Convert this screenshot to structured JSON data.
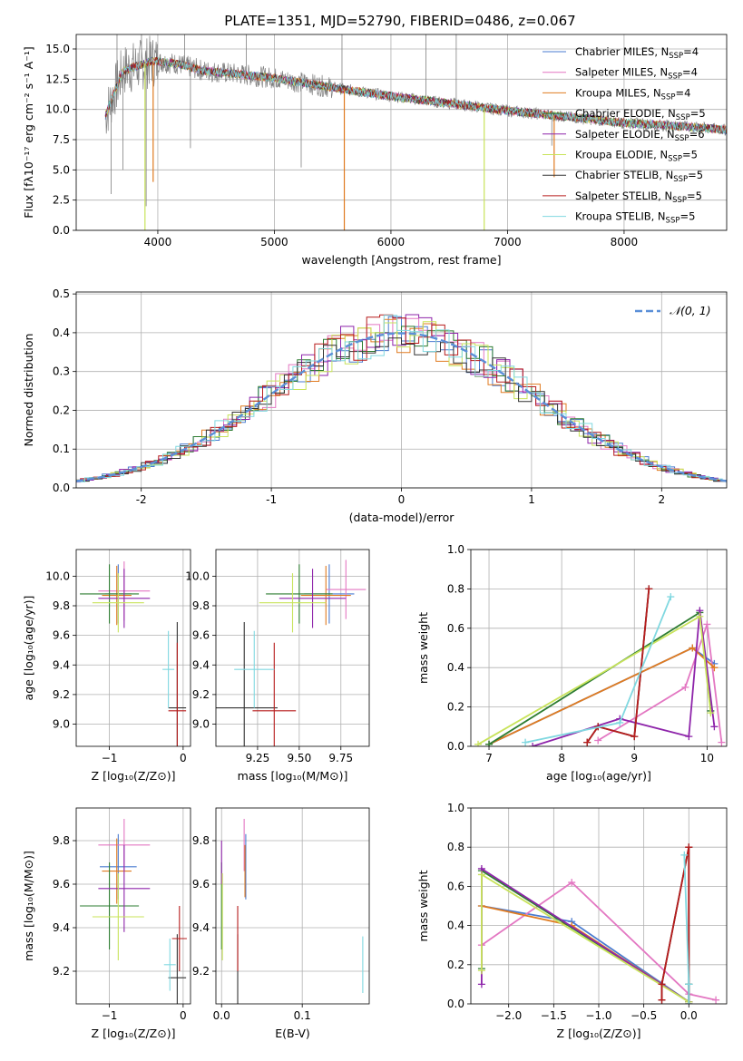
{
  "figure_title": "PLATE=1351, MJD=52790, FIBERID=0486, z=0.067",
  "colors": {
    "chabrier_miles": "#4a7bd0",
    "salpeter_miles": "#e377c2",
    "kroupa_miles": "#e07b20",
    "chabrier_elodie": "#2e7d32",
    "salpeter_elodie": "#8e24aa",
    "kroupa_elodie": "#c8e35a",
    "chabrier_stelib": "#333333",
    "salpeter_stelib": "#b71c1c",
    "kroupa_stelib": "#80d8e0",
    "data": "#808080",
    "gaussian": "#5b8fd8"
  },
  "legend": [
    {
      "key": "chabrier_miles",
      "prefix": "Chabrier MILES, N",
      "sub": "SSP",
      "suffix": "=4"
    },
    {
      "key": "salpeter_miles",
      "prefix": "Salpeter MILES, N",
      "sub": "SSP",
      "suffix": "=4"
    },
    {
      "key": "kroupa_miles",
      "prefix": "Kroupa MILES, N",
      "sub": "SSP",
      "suffix": "=4"
    },
    {
      "key": "chabrier_elodie",
      "prefix": "Chabrier ELODIE, N",
      "sub": "SSP",
      "suffix": "=5"
    },
    {
      "key": "salpeter_elodie",
      "prefix": "Salpeter ELODIE, N",
      "sub": "SSP",
      "suffix": "=6"
    },
    {
      "key": "kroupa_elodie",
      "prefix": "Kroupa ELODIE, N",
      "sub": "SSP",
      "suffix": "=5"
    },
    {
      "key": "chabrier_stelib",
      "prefix": "Chabrier STELIB, N",
      "sub": "SSP",
      "suffix": "=5"
    },
    {
      "key": "salpeter_stelib",
      "prefix": "Salpeter STELIB, N",
      "sub": "SSP",
      "suffix": "=5"
    },
    {
      "key": "kroupa_stelib",
      "prefix": "Kroupa STELIB, N",
      "sub": "SSP",
      "suffix": "=5"
    }
  ],
  "chart_data": [
    {
      "id": "spectrum",
      "type": "line",
      "xlabel": "wavelength [Angstrom, rest frame]",
      "ylabel": "Flux [fλ10⁻¹⁷ erg cm⁻² s⁻¹ A⁻¹]",
      "xlim": [
        3300,
        8880
      ],
      "ylim": [
        0,
        16.2
      ],
      "xticks": [
        4000,
        5000,
        6000,
        7000,
        8000
      ],
      "yticks": [
        0.0,
        2.5,
        5.0,
        7.5,
        10.0,
        12.5,
        15.0
      ],
      "continuum": {
        "x": [
          3550,
          3700,
          3950,
          4150,
          4400,
          5000,
          5500,
          6000,
          6500,
          7000,
          7500,
          8000,
          8500,
          8880
        ],
        "y": [
          9.5,
          13.2,
          14.0,
          13.8,
          13.2,
          12.6,
          11.8,
          11.1,
          10.5,
          9.9,
          9.4,
          8.9,
          8.6,
          8.3
        ]
      },
      "data_spikes": [
        {
          "x": 3600,
          "y": 3.0
        },
        {
          "x": 3650,
          "y": 16.2
        },
        {
          "x": 3700,
          "y": 5.0
        },
        {
          "x": 3860,
          "y": 16.2
        },
        {
          "x": 3900,
          "y": 2.0
        },
        {
          "x": 4230,
          "y": 16.2
        },
        {
          "x": 4280,
          "y": 6.8
        },
        {
          "x": 4760,
          "y": 16.2
        },
        {
          "x": 5230,
          "y": 5.2
        },
        {
          "x": 5580,
          "y": 16.2
        },
        {
          "x": 6300,
          "y": 16.2
        },
        {
          "x": 6560,
          "y": 16.2
        },
        {
          "x": 7380,
          "y": 7.0
        }
      ],
      "model_dips": [
        {
          "x": 3890,
          "y": 0.0,
          "key": "kroupa_elodie"
        },
        {
          "x": 3960,
          "y": 4.0,
          "key": "kroupa_miles"
        },
        {
          "x": 5600,
          "y": 0.0,
          "key": "kroupa_miles"
        },
        {
          "x": 6800,
          "y": 0.0,
          "key": "kroupa_elodie"
        },
        {
          "x": 7400,
          "y": 4.4,
          "key": "kroupa_miles"
        }
      ]
    },
    {
      "id": "residuals",
      "type": "histogram",
      "xlabel": "(data-model)/error",
      "ylabel": "Normed distribution",
      "xlim": [
        -2.5,
        2.5
      ],
      "ylim": [
        0,
        0.505
      ],
      "xticks": [
        -2,
        -1,
        0,
        1,
        2
      ],
      "yticks": [
        0.0,
        0.1,
        0.2,
        0.3,
        0.4,
        0.5
      ],
      "legend_label": "𝒩(0, 1)"
    },
    {
      "id": "age_vs_Z",
      "type": "errorbar",
      "xlabel": "Z [log₁₀(Z/Z⊙)]",
      "ylabel": "age  [log₁₀(age/yr)]",
      "xlim": [
        -1.45,
        0.1
      ],
      "ylim": [
        8.85,
        10.18
      ],
      "xticks": [
        -1,
        0
      ],
      "xticklabels": [
        "−1",
        "0"
      ],
      "yticks": [
        9.0,
        9.2,
        9.4,
        9.6,
        9.8,
        10.0
      ],
      "points": [
        {
          "key": "chabrier_miles",
          "x": -0.88,
          "xerr": 0.18,
          "y": 9.88,
          "yerr": 0.2
        },
        {
          "key": "salpeter_miles",
          "x": -0.8,
          "xerr": 0.35,
          "y": 9.9,
          "yerr": 0.2
        },
        {
          "key": "kroupa_miles",
          "x": -0.9,
          "xerr": 0.2,
          "y": 9.87,
          "yerr": 0.2
        },
        {
          "key": "chabrier_elodie",
          "x": -1.0,
          "xerr": 0.4,
          "y": 9.88,
          "yerr": 0.2
        },
        {
          "key": "salpeter_elodie",
          "x": -0.8,
          "xerr": 0.35,
          "y": 9.85,
          "yerr": 0.2
        },
        {
          "key": "kroupa_elodie",
          "x": -0.88,
          "xerr": 0.35,
          "y": 9.82,
          "yerr": 0.2
        },
        {
          "key": "chabrier_stelib",
          "x": -0.08,
          "xerr": 0.12,
          "y": 9.11,
          "yerr": 0.58
        },
        {
          "key": "salpeter_stelib",
          "x": -0.08,
          "xerr": 0.12,
          "y": 9.09,
          "yerr": 0.46
        },
        {
          "key": "kroupa_stelib",
          "x": -0.2,
          "xerr": 0.08,
          "y": 9.37,
          "yerr": 0.26
        }
      ]
    },
    {
      "id": "age_vs_mass",
      "type": "errorbar",
      "xlabel": "mass [log₁₀(M/M⊙)]",
      "ylabel": "",
      "xlim": [
        9.0,
        9.92
      ],
      "ylim": [
        8.85,
        10.18
      ],
      "xticks": [
        9.25,
        9.5,
        9.75
      ],
      "xticklabels": [
        "9.25",
        "9.50",
        "9.75"
      ],
      "yticks": [
        9.0,
        9.2,
        9.4,
        9.6,
        9.8,
        10.0
      ],
      "points": [
        {
          "key": "chabrier_miles",
          "x": 9.68,
          "xerr": 0.15,
          "y": 9.88,
          "yerr": 0.2
        },
        {
          "key": "salpeter_miles",
          "x": 9.78,
          "xerr": 0.12,
          "y": 9.91,
          "yerr": 0.2
        },
        {
          "key": "kroupa_miles",
          "x": 9.66,
          "xerr": 0.15,
          "y": 9.87,
          "yerr": 0.2
        },
        {
          "key": "chabrier_elodie",
          "x": 9.5,
          "xerr": 0.2,
          "y": 9.88,
          "yerr": 0.2
        },
        {
          "key": "salpeter_elodie",
          "x": 9.58,
          "xerr": 0.2,
          "y": 9.85,
          "yerr": 0.2
        },
        {
          "key": "kroupa_elodie",
          "x": 9.46,
          "xerr": 0.2,
          "y": 9.82,
          "yerr": 0.2
        },
        {
          "key": "chabrier_stelib",
          "x": 9.17,
          "xerr": 0.2,
          "y": 9.11,
          "yerr": 0.58
        },
        {
          "key": "salpeter_stelib",
          "x": 9.35,
          "xerr": 0.13,
          "y": 9.09,
          "yerr": 0.46
        },
        {
          "key": "kroupa_stelib",
          "x": 9.23,
          "xerr": 0.12,
          "y": 9.37,
          "yerr": 0.26
        }
      ]
    },
    {
      "id": "weight_vs_age",
      "type": "line",
      "xlabel": "age  [log₁₀(age/yr)]",
      "ylabel": "mass weight",
      "xlim": [
        6.75,
        10.27
      ],
      "ylim": [
        0,
        1.0
      ],
      "xticks": [
        7,
        8,
        9,
        10
      ],
      "yticks": [
        0.0,
        0.2,
        0.4,
        0.6,
        0.8,
        1.0
      ],
      "series": [
        {
          "key": "chabrier_miles",
          "x": [
            7.0,
            9.8,
            10.1
          ],
          "y": [
            0.01,
            0.5,
            0.42
          ]
        },
        {
          "key": "salpeter_miles",
          "x": [
            8.5,
            9.7,
            10.0,
            10.2
          ],
          "y": [
            0.03,
            0.3,
            0.62,
            0.02
          ]
        },
        {
          "key": "kroupa_miles",
          "x": [
            7.0,
            9.8,
            10.1
          ],
          "y": [
            0.01,
            0.5,
            0.4
          ]
        },
        {
          "key": "chabrier_elodie",
          "x": [
            7.0,
            9.9,
            10.05
          ],
          "y": [
            0.01,
            0.68,
            0.18
          ]
        },
        {
          "key": "salpeter_elodie",
          "x": [
            7.6,
            8.8,
            9.75,
            9.9,
            10.1
          ],
          "y": [
            0.0,
            0.14,
            0.05,
            0.69,
            0.1
          ]
        },
        {
          "key": "kroupa_elodie",
          "x": [
            6.85,
            9.9,
            10.05
          ],
          "y": [
            0.01,
            0.66,
            0.17
          ]
        },
        {
          "key": "chabrier_stelib",
          "x": [
            8.35,
            8.5,
            9.0,
            9.2
          ],
          "y": [
            0.02,
            0.1,
            0.05,
            0.8
          ]
        },
        {
          "key": "salpeter_stelib",
          "x": [
            8.35,
            8.5,
            9.0,
            9.2
          ],
          "y": [
            0.02,
            0.1,
            0.05,
            0.8
          ]
        },
        {
          "key": "kroupa_stelib",
          "x": [
            7.5,
            8.8,
            9.5
          ],
          "y": [
            0.02,
            0.12,
            0.76
          ]
        }
      ]
    },
    {
      "id": "mass_vs_Z",
      "type": "errorbar",
      "xlabel": "Z [log₁₀(Z/Z⊙)]",
      "ylabel": "mass [log₁₀(M/M⊙)]",
      "xlim": [
        -1.45,
        0.1
      ],
      "ylim": [
        9.05,
        9.95
      ],
      "xticks": [
        -1,
        0
      ],
      "xticklabels": [
        "−1",
        "0"
      ],
      "yticks": [
        9.2,
        9.4,
        9.6,
        9.8
      ],
      "points": [
        {
          "key": "chabrier_miles",
          "x": -0.88,
          "xerr": 0.25,
          "y": 9.68,
          "yerr": 0.15
        },
        {
          "key": "salpeter_miles",
          "x": -0.8,
          "xerr": 0.35,
          "y": 9.78,
          "yerr": 0.12
        },
        {
          "key": "kroupa_miles",
          "x": -0.9,
          "xerr": 0.2,
          "y": 9.66,
          "yerr": 0.15
        },
        {
          "key": "chabrier_elodie",
          "x": -1.0,
          "xerr": 0.4,
          "y": 9.5,
          "yerr": 0.2
        },
        {
          "key": "salpeter_elodie",
          "x": -0.8,
          "xerr": 0.35,
          "y": 9.58,
          "yerr": 0.2
        },
        {
          "key": "kroupa_elodie",
          "x": -0.88,
          "xerr": 0.35,
          "y": 9.45,
          "yerr": 0.2
        },
        {
          "key": "chabrier_stelib",
          "x": -0.08,
          "xerr": 0.12,
          "y": 9.17,
          "yerr": 0.2
        },
        {
          "key": "salpeter_stelib",
          "x": -0.05,
          "xerr": 0.1,
          "y": 9.35,
          "yerr": 0.15
        },
        {
          "key": "kroupa_stelib",
          "x": -0.18,
          "xerr": 0.08,
          "y": 9.23,
          "yerr": 0.12
        }
      ]
    },
    {
      "id": "mass_vs_EBV",
      "type": "errorbar",
      "xlabel": "E(B-V)",
      "ylabel": "",
      "xlim": [
        -0.007,
        0.183
      ],
      "ylim": [
        9.05,
        9.95
      ],
      "xticks": [
        0.0,
        0.1
      ],
      "xticklabels": [
        "0.0",
        "0.1"
      ],
      "yticks": [
        9.2,
        9.4,
        9.6,
        9.8
      ],
      "points": [
        {
          "key": "chabrier_miles",
          "x": 0.03,
          "xerr": 0,
          "y": 9.68,
          "yerr": 0.15
        },
        {
          "key": "salpeter_miles",
          "x": 0.028,
          "xerr": 0,
          "y": 9.78,
          "yerr": 0.12
        },
        {
          "key": "kroupa_miles",
          "x": 0.029,
          "xerr": 0,
          "y": 9.66,
          "yerr": 0.12
        },
        {
          "key": "chabrier_elodie",
          "x": 0.0,
          "xerr": 0,
          "y": 9.5,
          "yerr": 0.2
        },
        {
          "key": "salpeter_elodie",
          "x": 0.0,
          "xerr": 0,
          "y": 9.7,
          "yerr": 0.1
        },
        {
          "key": "kroupa_elodie",
          "x": 0.001,
          "xerr": 0,
          "y": 9.45,
          "yerr": 0.2
        },
        {
          "key": "chabrier_stelib",
          "x": 0.02,
          "xerr": 0,
          "y": 9.17,
          "yerr": 0.2
        },
        {
          "key": "salpeter_stelib",
          "x": 0.02,
          "xerr": 0,
          "y": 9.35,
          "yerr": 0.15
        },
        {
          "key": "kroupa_stelib",
          "x": 0.175,
          "xerr": 0,
          "y": 9.23,
          "yerr": 0.13
        }
      ]
    },
    {
      "id": "weight_vs_Z",
      "type": "line",
      "xlabel": "Z [log₁₀(Z/Z⊙)]",
      "ylabel": "mass weight",
      "xlim": [
        -2.42,
        0.42
      ],
      "ylim": [
        0,
        1.0
      ],
      "xticks": [
        -2.0,
        -1.5,
        -1.0,
        -0.5,
        0.0
      ],
      "xticklabels": [
        "−2.0",
        "−1.5",
        "−1.0",
        "−0.5",
        "0.0"
      ],
      "yticks": [
        0.0,
        0.2,
        0.4,
        0.6,
        0.8,
        1.0
      ],
      "series": [
        {
          "key": "chabrier_miles",
          "x": [
            -2.3,
            -1.3,
            0.0,
            0.0
          ],
          "y": [
            0.5,
            0.42,
            0.01,
            0.1
          ]
        },
        {
          "key": "salpeter_miles",
          "x": [
            -2.3,
            -1.3,
            0.0,
            0.3
          ],
          "y": [
            0.3,
            0.62,
            0.05,
            0.02
          ]
        },
        {
          "key": "kroupa_miles",
          "x": [
            -2.3,
            -1.3,
            0.0
          ],
          "y": [
            0.5,
            0.4,
            0.01
          ]
        },
        {
          "key": "chabrier_elodie",
          "x": [
            -2.3,
            -2.3,
            0.0,
            0.0
          ],
          "y": [
            0.18,
            0.68,
            0.01,
            0.1
          ]
        },
        {
          "key": "salpeter_elodie",
          "x": [
            -2.3,
            -2.3,
            0.0
          ],
          "y": [
            0.1,
            0.69,
            0.01
          ]
        },
        {
          "key": "kroupa_elodie",
          "x": [
            -2.3,
            -2.3,
            0.0
          ],
          "y": [
            0.17,
            0.66,
            0.01
          ]
        },
        {
          "key": "chabrier_stelib",
          "x": [
            -0.3,
            -0.3,
            0.0,
            0.0
          ],
          "y": [
            0.02,
            0.1,
            0.8,
            0.0
          ]
        },
        {
          "key": "salpeter_stelib",
          "x": [
            -0.3,
            -0.3,
            0.0,
            0.0
          ],
          "y": [
            0.02,
            0.1,
            0.8,
            0.0
          ]
        },
        {
          "key": "kroupa_stelib",
          "x": [
            -0.05,
            0.0,
            0.0
          ],
          "y": [
            0.76,
            0.1,
            0.0
          ]
        }
      ]
    }
  ]
}
